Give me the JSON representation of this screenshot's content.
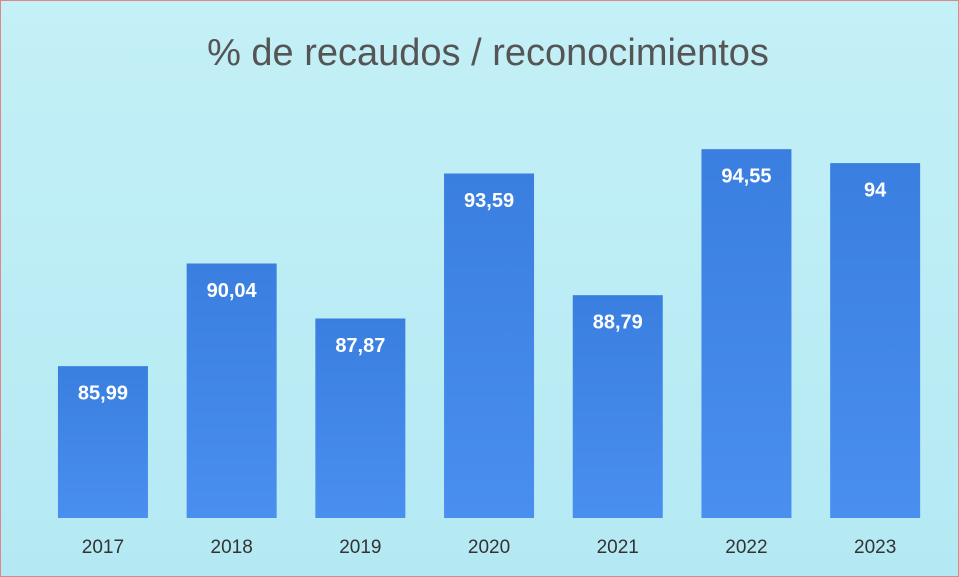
{
  "chart_data": {
    "type": "bar",
    "title": "% de recaudos / reconocimientos",
    "categories": [
      "2017",
      "2018",
      "2019",
      "2020",
      "2021",
      "2022",
      "2023"
    ],
    "values": [
      85.99,
      90.04,
      87.87,
      93.59,
      88.79,
      94.55,
      94
    ],
    "value_labels": [
      "85,99",
      "90,04",
      "87,87",
      "93,59",
      "88,79",
      "94,55",
      "94"
    ],
    "color": "#3a7fe0",
    "ylim": [
      80,
      96
    ]
  }
}
